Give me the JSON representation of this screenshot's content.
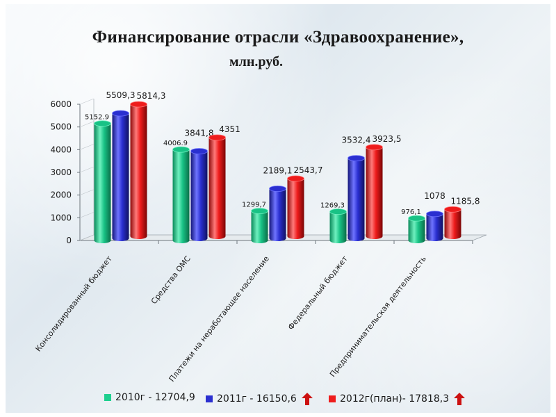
{
  "title_line1": "Финансирование отрасли «Здравоохранение»,",
  "title_line2": "млн.руб.",
  "colors": {
    "s2010": "#1ecf8f",
    "s2011": "#2a2fd0",
    "s2012": "#ee1c1c",
    "arrow": "#cc1111"
  },
  "legend": [
    {
      "label": "2010г - 12704,9",
      "arrow": false
    },
    {
      "label": "2011г - 16150,6",
      "arrow": true
    },
    {
      "label": "2012г(план)- 17818,3",
      "arrow": true
    }
  ],
  "chart_data": {
    "type": "bar",
    "title": "",
    "xlabel": "",
    "ylabel": "",
    "ylim": [
      0,
      6000
    ],
    "yticks": [
      0,
      1000,
      2000,
      3000,
      4000,
      5000,
      6000
    ],
    "grid": false,
    "legend_position": "bottom",
    "categories": [
      "Консолидированный бюджет",
      "Средства ОМС",
      "Платежи на неработающее население",
      "Федеральный бюджет",
      "Предпринимательская деятельность"
    ],
    "series": [
      {
        "name": "2010г - 12704,9",
        "values": [
          5152.9,
          4006.9,
          1299.7,
          1269.3,
          976.1
        ],
        "labels": [
          "5152.9",
          "4006.9",
          "1299,7",
          "1269,3",
          "976,1"
        ]
      },
      {
        "name": "2011г - 16150,6",
        "values": [
          5509.3,
          3841.8,
          2189.1,
          3532.4,
          1078
        ],
        "labels": [
          "5509,3",
          "3841,8",
          "2189,1",
          "3532,4",
          "1078"
        ]
      },
      {
        "name": "2012г(план)- 17818,3",
        "values": [
          5814.3,
          4351,
          2543.7,
          3923.5,
          1185.8
        ],
        "labels": [
          "5814,3",
          "4351",
          "2543,7",
          "3923,5",
          "1185,8"
        ]
      }
    ]
  }
}
